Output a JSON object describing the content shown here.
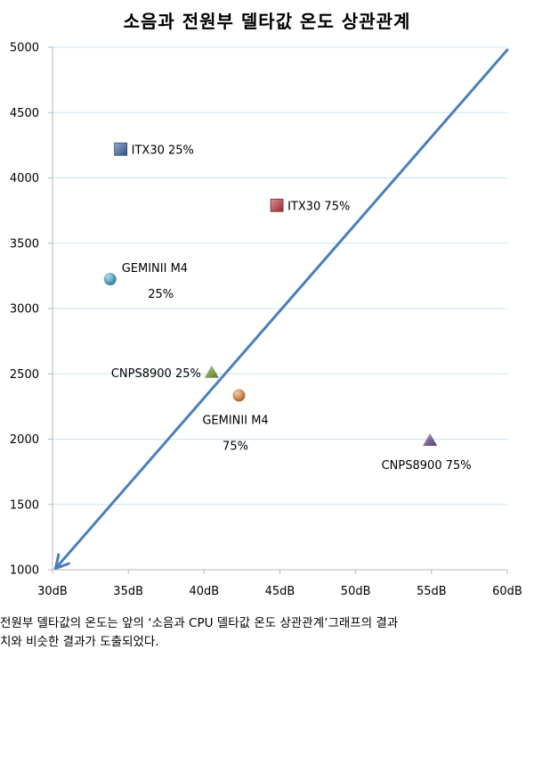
{
  "chart_data": {
    "type": "scatter",
    "title": "소음과 전원부 델타값 온도 상관관계",
    "xlim": [
      30,
      60
    ],
    "ylim": [
      1000,
      5000
    ],
    "x_ticks": [
      30,
      35,
      40,
      45,
      50,
      55,
      60
    ],
    "x_tick_labels": [
      "30dB",
      "35dB",
      "40dB",
      "45dB",
      "50dB",
      "55dB",
      "60dB"
    ],
    "y_ticks": [
      1000,
      1500,
      2000,
      2500,
      3000,
      3500,
      4000,
      4500,
      5000
    ],
    "y_tick_labels": [
      "1000",
      "1500",
      "2000",
      "2500",
      "3000",
      "3500",
      "4000",
      "4500",
      "5000"
    ],
    "grid": "horizontal",
    "points": [
      {
        "label_lines": [
          "ITX30 25%"
        ],
        "x": 34.5,
        "y": 4220,
        "marker": "square",
        "color": "#3a6ab0",
        "label_pos": "right"
      },
      {
        "label_lines": [
          "ITX30 75%"
        ],
        "x": 44.8,
        "y": 3790,
        "marker": "square",
        "color": "#c0393b",
        "label_pos": "right"
      },
      {
        "label_lines": [
          "GEMINII M4",
          "25%"
        ],
        "x": 33.8,
        "y": 3225,
        "marker": "circle",
        "color": "#2e9ec8",
        "label_pos": "upper-right"
      },
      {
        "label_lines": [
          "CNPS8900 25%"
        ],
        "x": 40.5,
        "y": 2510,
        "marker": "triangle",
        "color": "#77a33a",
        "label_pos": "left"
      },
      {
        "label_lines": [
          "GEMINII M4",
          "75%"
        ],
        "x": 42.3,
        "y": 2335,
        "marker": "circle",
        "color": "#e27a20",
        "label_pos": "below"
      },
      {
        "label_lines": [
          "CNPS8900 75%"
        ],
        "x": 54.9,
        "y": 1990,
        "marker": "triangle",
        "color": "#6a4c9c",
        "label_pos": "below"
      }
    ],
    "arrow": {
      "from": [
        60,
        4980
      ],
      "to": [
        30.2,
        1010
      ],
      "color": "#4a7ebb"
    }
  },
  "caption": {
    "line1": "전원부 델타값의 온도는 앞의 ‘소음과 CPU 델타값 온도 상관관계’그래프의 결과",
    "line2": "치와 비슷한 결과가 도출되었다."
  }
}
